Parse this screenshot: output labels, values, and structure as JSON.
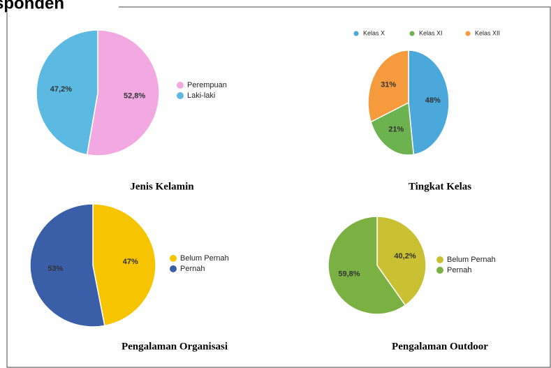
{
  "heading": "sponden",
  "chart_data": [
    {
      "type": "pie",
      "title": "Jenis Kelamin",
      "categories": [
        "Perempuan",
        "Laki-laki"
      ],
      "values": [
        52.8,
        47.2
      ],
      "value_labels": [
        "52,8%",
        "47,2%"
      ],
      "colors": [
        "#f2a9e2",
        "#5cb9e2"
      ],
      "legend": "right"
    },
    {
      "type": "pie",
      "title": "Tingkat Kelas",
      "categories": [
        "Kelas X",
        "Kelas XI",
        "Kelas XII"
      ],
      "values": [
        48,
        21,
        31
      ],
      "value_labels": [
        "48%",
        "21%",
        "31%"
      ],
      "colors": [
        "#4aa9da",
        "#6cb24e",
        "#f59b3d"
      ],
      "legend": "top"
    },
    {
      "type": "pie",
      "title": "Pengalaman Organisasi",
      "categories": [
        "Belum Pernah",
        "Pernah"
      ],
      "values": [
        47,
        53
      ],
      "value_labels": [
        "47%",
        "53%"
      ],
      "colors": [
        "#f6c400",
        "#3b5ea9"
      ],
      "legend": "right"
    },
    {
      "type": "pie",
      "title": "Pengalaman Outdoor",
      "categories": [
        "Belum Pernah",
        "Pernah"
      ],
      "values": [
        40.2,
        59.8
      ],
      "value_labels": [
        "40,2%",
        "59,8%"
      ],
      "colors": [
        "#c9c132",
        "#7bb142"
      ],
      "legend": "right"
    }
  ]
}
